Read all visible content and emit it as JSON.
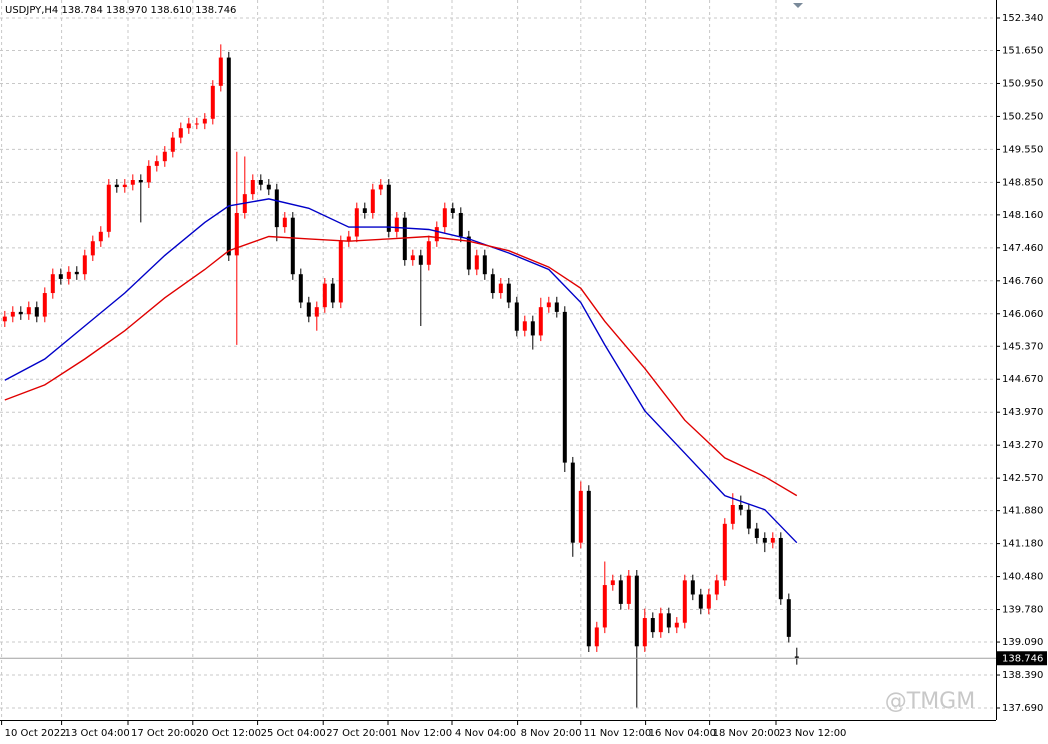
{
  "chart_data": {
    "type": "candlestick",
    "header": "USDJPY,H4  138.784 138.970 138.610 138.746",
    "watermark": "@TMGM",
    "up_color": "#ff0000",
    "down_color": "#000000",
    "open": [
      145.9,
      146.0,
      146.1,
      146.05,
      146.2,
      146.0,
      146.5,
      146.9,
      146.8,
      146.95,
      146.9,
      147.3,
      147.6,
      147.8,
      148.8,
      148.75,
      148.8,
      148.9,
      148.85,
      149.2,
      149.3,
      149.5,
      149.8,
      150.0,
      150.1,
      150.1,
      150.2,
      150.9,
      151.5,
      147.3,
      148.2,
      148.6,
      148.9,
      148.8,
      148.7,
      147.9,
      148.1,
      146.9,
      146.3,
      146.0,
      146.2,
      146.7,
      146.3,
      147.6,
      147.7,
      148.3,
      148.2,
      148.7,
      148.8,
      147.8,
      148.1,
      147.2,
      147.3,
      147.1,
      147.6,
      147.9,
      148.3,
      148.2,
      147.7,
      147.0,
      147.3,
      146.9,
      146.5,
      146.7,
      146.3,
      145.7,
      145.9,
      145.6,
      146.2,
      146.3,
      146.1,
      142.9,
      141.2,
      142.3,
      139.0,
      139.4,
      140.3,
      140.4,
      139.9,
      140.5,
      139.0,
      139.6,
      139.3,
      139.7,
      139.4,
      139.5,
      140.4,
      140.1,
      139.8,
      140.1,
      140.4,
      141.6,
      142.0,
      141.9,
      141.5,
      141.3,
      141.2,
      141.3,
      140.0,
      138.784
    ],
    "high": [
      146.12,
      146.22,
      146.22,
      146.32,
      146.32,
      146.62,
      147.02,
      147.02,
      147.07,
      147.07,
      147.42,
      147.72,
      147.92,
      148.92,
      148.92,
      148.92,
      149.02,
      149.02,
      149.32,
      149.42,
      149.62,
      149.92,
      150.12,
      150.22,
      150.22,
      150.32,
      151.02,
      151.78,
      151.62,
      149.5,
      149.4,
      149.02,
      149.02,
      148.92,
      148.82,
      148.22,
      148.22,
      147.02,
      146.42,
      146.32,
      146.82,
      146.82,
      147.72,
      147.82,
      148.42,
      148.42,
      148.82,
      148.92,
      148.92,
      148.22,
      148.22,
      147.42,
      147.42,
      147.72,
      148.02,
      148.42,
      148.42,
      148.32,
      147.82,
      147.42,
      147.42,
      147.02,
      146.82,
      146.82,
      146.42,
      146.02,
      146.02,
      146.4,
      146.42,
      146.42,
      146.22,
      143.02,
      142.5,
      142.42,
      139.52,
      140.8,
      140.52,
      140.52,
      140.62,
      140.62,
      139.8,
      139.72,
      139.82,
      139.82,
      139.62,
      140.52,
      140.52,
      140.22,
      140.22,
      140.52,
      141.72,
      142.25,
      142.2,
      142.02,
      141.62,
      141.42,
      141.42,
      141.42,
      140.12,
      138.97
    ],
    "low": [
      145.78,
      145.88,
      145.93,
      145.93,
      145.88,
      145.88,
      146.38,
      146.68,
      146.68,
      146.78,
      146.78,
      147.18,
      147.48,
      147.68,
      148.63,
      148.63,
      148.68,
      148.0,
      148.73,
      149.08,
      149.18,
      149.38,
      149.68,
      149.88,
      149.98,
      149.98,
      150.08,
      150.78,
      147.18,
      145.4,
      148.08,
      148.48,
      148.68,
      148.58,
      147.6,
      147.78,
      146.78,
      146.18,
      145.88,
      145.7,
      146.08,
      146.18,
      146.18,
      147.48,
      147.58,
      148.08,
      148.08,
      148.58,
      147.68,
      147.68,
      147.08,
      147.08,
      145.8,
      146.98,
      147.48,
      147.78,
      148.08,
      147.58,
      146.88,
      146.88,
      146.78,
      146.38,
      146.38,
      146.18,
      145.58,
      145.58,
      145.3,
      145.48,
      146.08,
      145.98,
      142.7,
      140.9,
      141.08,
      138.88,
      138.88,
      139.28,
      140.18,
      139.78,
      139.78,
      137.7,
      138.88,
      139.18,
      139.18,
      139.28,
      139.28,
      139.38,
      139.98,
      139.68,
      139.68,
      139.98,
      140.28,
      141.48,
      141.78,
      141.38,
      141.18,
      141.0,
      141.08,
      139.88,
      139.08,
      138.61
    ],
    "close": [
      146.0,
      146.1,
      146.05,
      146.2,
      146.0,
      146.5,
      146.9,
      146.8,
      146.95,
      146.9,
      147.3,
      147.6,
      147.8,
      148.8,
      148.75,
      148.8,
      148.9,
      148.85,
      149.2,
      149.3,
      149.5,
      149.8,
      150.0,
      150.1,
      150.1,
      150.2,
      150.9,
      151.5,
      147.3,
      148.2,
      148.6,
      148.9,
      148.8,
      148.7,
      147.9,
      148.1,
      146.9,
      146.3,
      146.0,
      146.2,
      146.7,
      146.3,
      147.6,
      147.7,
      148.3,
      148.2,
      148.7,
      148.8,
      147.8,
      148.1,
      147.2,
      147.3,
      147.1,
      147.6,
      147.9,
      148.3,
      148.2,
      147.7,
      147.0,
      147.3,
      146.9,
      146.5,
      146.7,
      146.3,
      145.7,
      145.9,
      145.6,
      146.2,
      146.3,
      146.1,
      142.9,
      141.2,
      142.3,
      139.0,
      139.4,
      140.3,
      140.4,
      139.9,
      140.5,
      139.0,
      139.6,
      139.3,
      139.7,
      139.4,
      139.5,
      140.4,
      140.1,
      139.8,
      140.1,
      140.4,
      141.6,
      142.0,
      141.9,
      141.5,
      141.3,
      141.2,
      141.3,
      140.0,
      139.2,
      138.746
    ],
    "series": [
      {
        "color": "#0000c8",
        "x": [
          0,
          5,
          10,
          15,
          20,
          25,
          28,
          33,
          38,
          43,
          48,
          53,
          58,
          63,
          68,
          72,
          75,
          80,
          85,
          90,
          95,
          99
        ],
        "values": [
          144.65,
          145.1,
          145.8,
          146.5,
          147.3,
          148.0,
          148.35,
          148.5,
          148.3,
          147.9,
          147.9,
          147.85,
          147.65,
          147.35,
          147.0,
          146.3,
          145.4,
          144.0,
          143.1,
          142.2,
          141.9,
          141.2
        ]
      },
      {
        "color": "#e00000",
        "x": [
          0,
          5,
          10,
          15,
          20,
          25,
          28,
          33,
          38,
          43,
          48,
          53,
          58,
          63,
          68,
          72,
          75,
          80,
          85,
          90,
          95,
          99
        ],
        "values": [
          144.23,
          144.55,
          145.1,
          145.7,
          146.4,
          147.0,
          147.4,
          147.7,
          147.65,
          147.6,
          147.65,
          147.7,
          147.6,
          147.4,
          147.05,
          146.6,
          145.9,
          144.9,
          143.8,
          143.0,
          142.6,
          142.2
        ]
      }
    ],
    "current_price": {
      "value": 138.746,
      "label": "138.746"
    },
    "xlim": [
      -0.6,
      123.9
    ],
    "ylim": [
      137.435,
      152.722
    ],
    "xticks": [
      {
        "value": -0.4,
        "label": "10 Oct 2022"
      },
      {
        "value": 7.1,
        "label": "13 Oct 04:00"
      },
      {
        "value": 15.4,
        "label": "17 Oct 20:00"
      },
      {
        "value": 23.5,
        "label": "20 Oct 12:00"
      },
      {
        "value": 31.6,
        "label": "25 Oct 04:00"
      },
      {
        "value": 39.8,
        "label": "27 Oct 20:00"
      },
      {
        "value": 47.9,
        "label": "1 Nov 12:00"
      },
      {
        "value": 55.9,
        "label": "4 Nov 04:00"
      },
      {
        "value": 64.1,
        "label": "8 Nov 20:00"
      },
      {
        "value": 72,
        "label": "11 Nov 12:00"
      },
      {
        "value": 80.1,
        "label": "16 Nov 04:00"
      },
      {
        "value": 88.1,
        "label": "18 Nov 20:00"
      },
      {
        "value": 96.4,
        "label": "23 Nov 12:00"
      }
    ],
    "yticks": [
      {
        "value": 152.34,
        "label": "152.340"
      },
      {
        "value": 151.65,
        "label": "151.650"
      },
      {
        "value": 150.95,
        "label": "150.950"
      },
      {
        "value": 150.25,
        "label": "150.250"
      },
      {
        "value": 149.55,
        "label": "149.550"
      },
      {
        "value": 148.85,
        "label": "148.850"
      },
      {
        "value": 148.16,
        "label": "148.160"
      },
      {
        "value": 147.46,
        "label": "147.460"
      },
      {
        "value": 146.76,
        "label": "146.760"
      },
      {
        "value": 146.06,
        "label": "146.060"
      },
      {
        "value": 145.37,
        "label": "145.370"
      },
      {
        "value": 144.67,
        "label": "144.670"
      },
      {
        "value": 143.97,
        "label": "143.970"
      },
      {
        "value": 143.27,
        "label": "143.270"
      },
      {
        "value": 142.57,
        "label": "142.570"
      },
      {
        "value": 141.88,
        "label": "141.880"
      },
      {
        "value": 141.18,
        "label": "141.180"
      },
      {
        "value": 140.48,
        "label": "140.480"
      },
      {
        "value": 139.78,
        "label": "139.780"
      },
      {
        "value": 139.09,
        "label": "139.090"
      },
      {
        "value": 138.39,
        "label": "138.390"
      },
      {
        "value": 137.69,
        "label": "137.690"
      }
    ],
    "grid": true
  }
}
